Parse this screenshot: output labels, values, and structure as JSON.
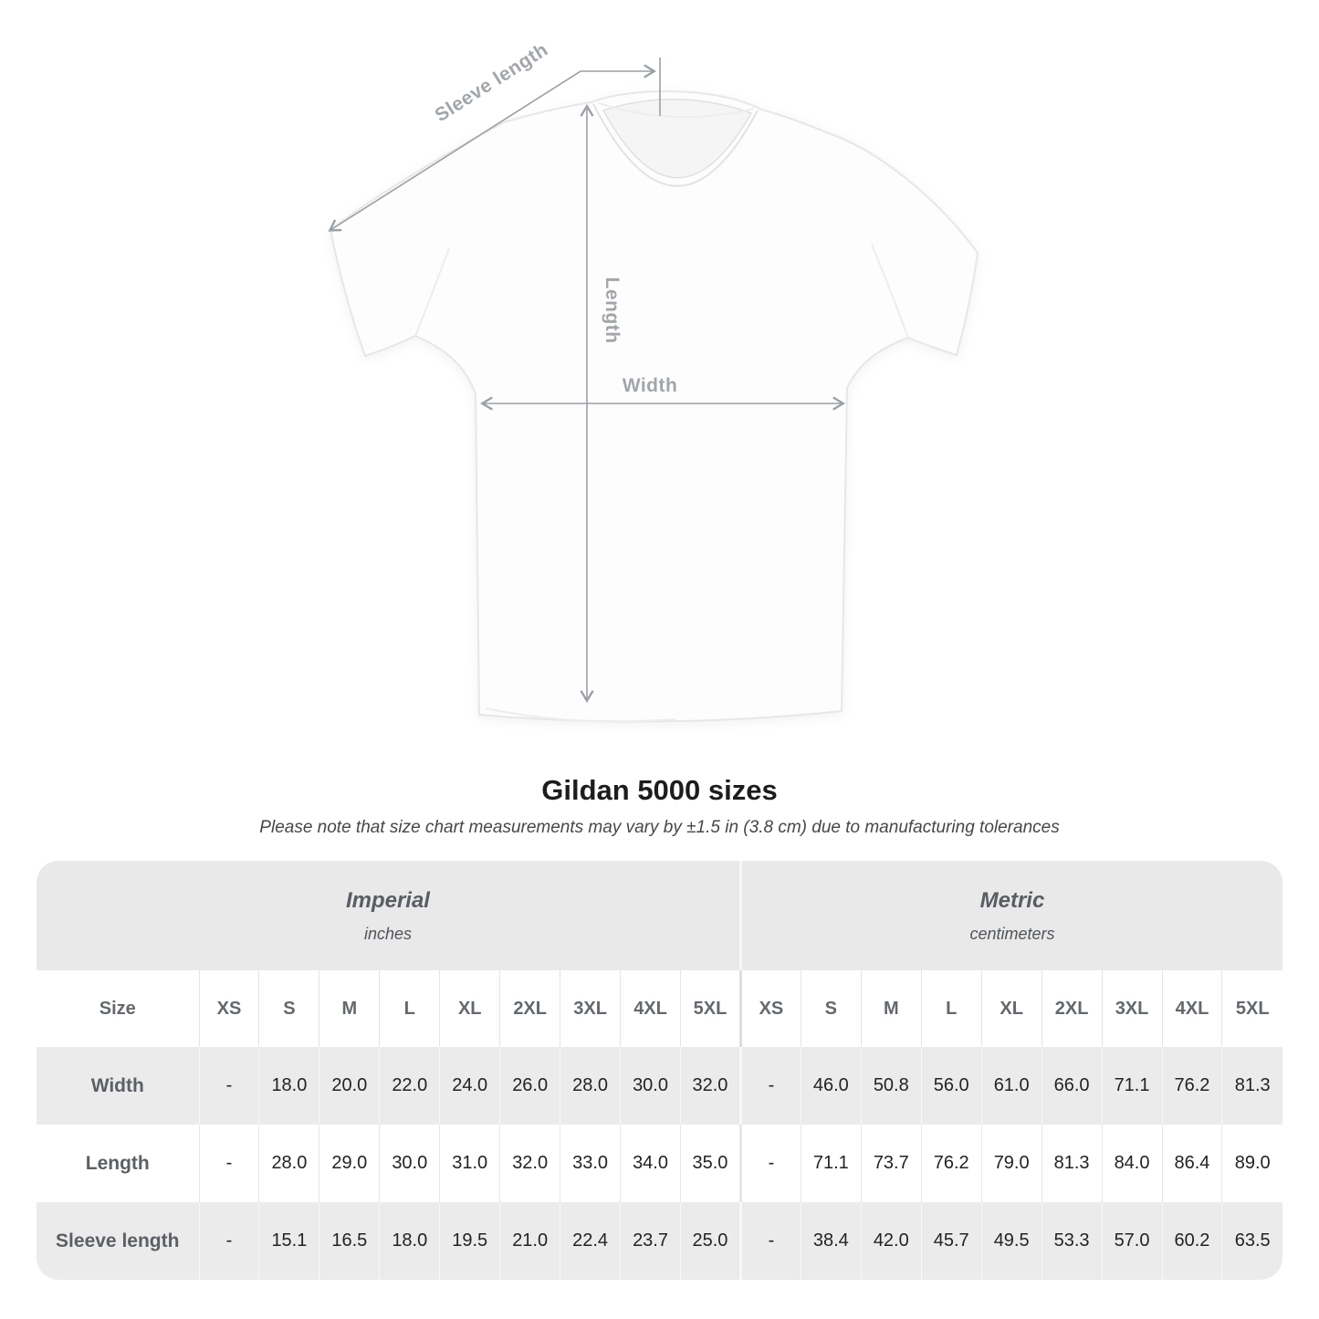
{
  "diagram": {
    "labels": {
      "sleeve_length": "Sleeve length",
      "length": "Length",
      "width": "Width"
    }
  },
  "title": "Gildan 5000 sizes",
  "subtitle": "Please note that size chart measurements may vary by ±1.5 in (3.8 cm) due to manufacturing tolerances",
  "table": {
    "unit_groups": [
      {
        "name": "Imperial",
        "unit": "inches"
      },
      {
        "name": "Metric",
        "unit": "centimeters"
      }
    ],
    "size_label": "Size",
    "sizes": [
      "XS",
      "S",
      "M",
      "L",
      "XL",
      "2XL",
      "3XL",
      "4XL",
      "5XL"
    ],
    "rows": [
      {
        "label": "Width",
        "imperial": [
          "-",
          "18.0",
          "20.0",
          "22.0",
          "24.0",
          "26.0",
          "28.0",
          "30.0",
          "32.0"
        ],
        "metric": [
          "-",
          "46.0",
          "50.8",
          "56.0",
          "61.0",
          "66.0",
          "71.1",
          "76.2",
          "81.3"
        ]
      },
      {
        "label": "Length",
        "imperial": [
          "-",
          "28.0",
          "29.0",
          "30.0",
          "31.0",
          "32.0",
          "33.0",
          "34.0",
          "35.0"
        ],
        "metric": [
          "-",
          "71.1",
          "73.7",
          "76.2",
          "79.0",
          "81.3",
          "84.0",
          "86.4",
          "89.0"
        ]
      },
      {
        "label": "Sleeve length",
        "imperial": [
          "-",
          "15.1",
          "16.5",
          "18.0",
          "19.5",
          "21.0",
          "22.4",
          "23.7",
          "25.0"
        ],
        "metric": [
          "-",
          "38.4",
          "42.0",
          "45.7",
          "49.5",
          "53.3",
          "57.0",
          "60.2",
          "63.5"
        ]
      }
    ]
  },
  "colors": {
    "table_band_gray": "#e9e9e9",
    "row_stripe_gray": "#ebebeb",
    "annotation_gray": "#9aa0a5"
  }
}
